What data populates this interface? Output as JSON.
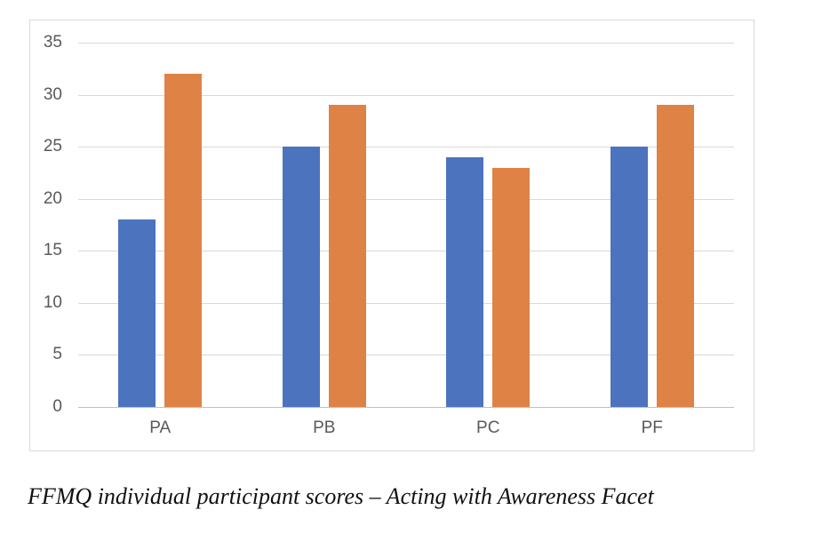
{
  "caption": "FFMQ individual participant scores – Acting with Awareness Facet",
  "chart_data": {
    "type": "bar",
    "title": "",
    "xlabel": "",
    "ylabel": "",
    "categories": [
      "PA",
      "PB",
      "PC",
      "PF"
    ],
    "series": [
      {
        "name": "blue",
        "color": "#4c73be",
        "values": [
          18,
          25,
          24,
          25
        ]
      },
      {
        "name": "orange",
        "color": "#df8245",
        "values": [
          32,
          29,
          23,
          29
        ]
      }
    ],
    "ylim": [
      0,
      35
    ],
    "yticks": [
      0,
      5,
      10,
      15,
      20,
      25,
      30,
      35
    ],
    "grid": true,
    "legend_position": "none",
    "colors": {
      "gridline": "#d9d9d9",
      "axis_line": "#bfbfbf",
      "tick_label": "#595959",
      "frame_border": "#d9d9d9"
    }
  }
}
